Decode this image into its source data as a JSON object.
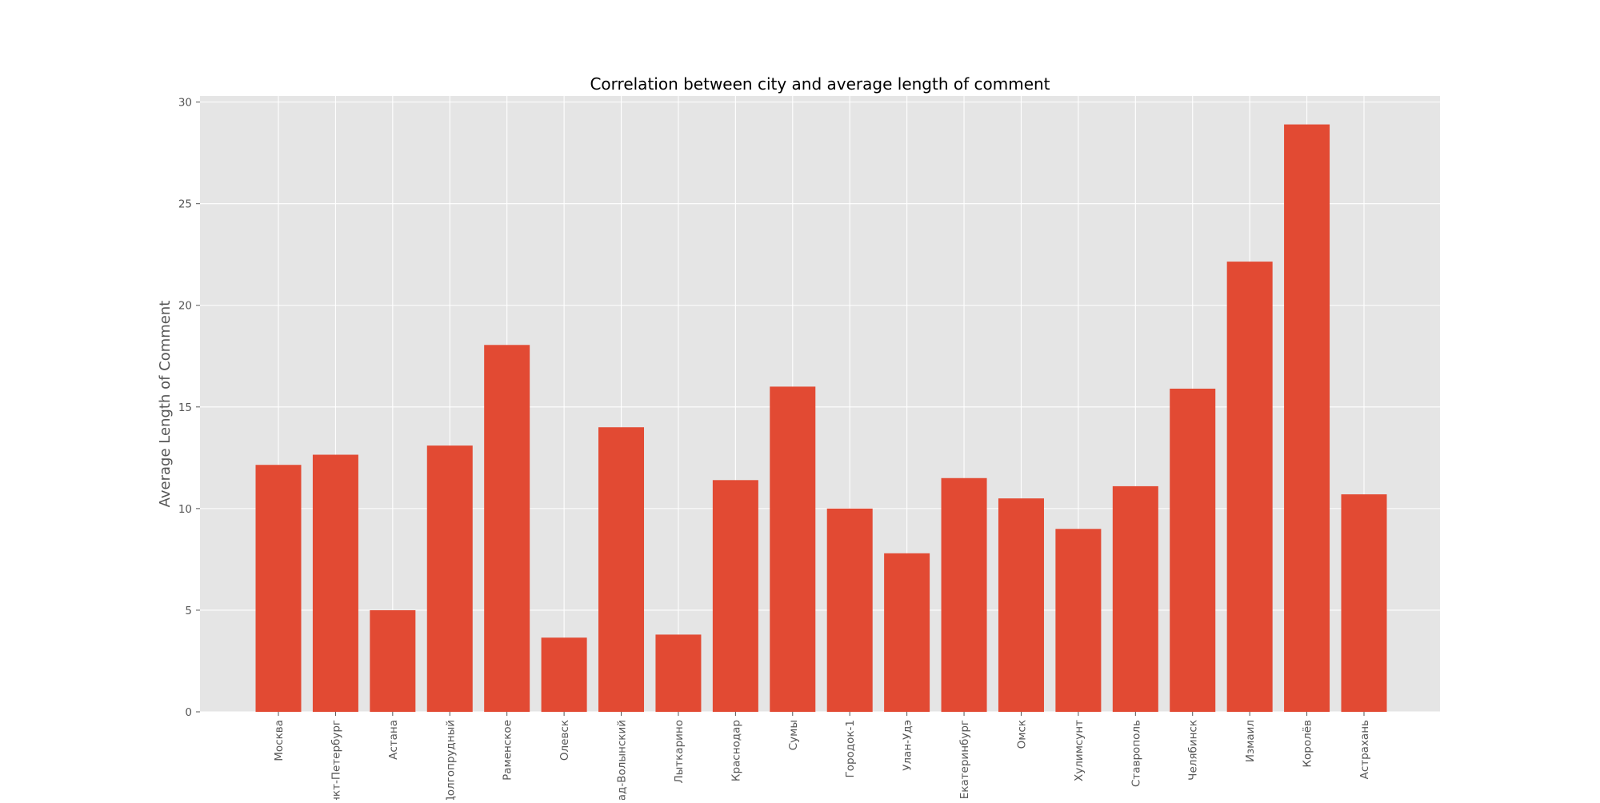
{
  "chart_data": {
    "type": "bar",
    "title": "Correlation between city and average length of comment",
    "xlabel": "",
    "ylabel": "Average Length of Comment",
    "categories": [
      "Москва",
      "Санкт-Петербург",
      "Астана",
      "Долгопрудный",
      "Раменское",
      "Олевск",
      "Новоград-Волынский",
      "Лыткарино",
      "Краснодар",
      "Сумы",
      "Городок-1",
      "Улан-Удэ",
      "Екатеринбург",
      "Омск",
      "Хулимсунт",
      "Ставрополь",
      "Челябинск",
      "Измаил",
      "Королёв",
      "Астрахань"
    ],
    "values": [
      12.15,
      12.65,
      5.0,
      13.1,
      18.05,
      3.65,
      14.0,
      3.8,
      11.4,
      16.0,
      10.0,
      7.8,
      11.5,
      10.5,
      9.0,
      11.1,
      15.9,
      22.15,
      28.9,
      10.7
    ],
    "ylim": [
      0,
      30.3
    ],
    "yticks": [
      0,
      5,
      10,
      15,
      20,
      25,
      30
    ],
    "grid": true,
    "legend": "none",
    "colors": {
      "bar": "#E24A33",
      "plot_background": "#E5E5E5",
      "grid": "#FFFFFF",
      "tick_label": "#555555",
      "title": "#000000"
    }
  }
}
